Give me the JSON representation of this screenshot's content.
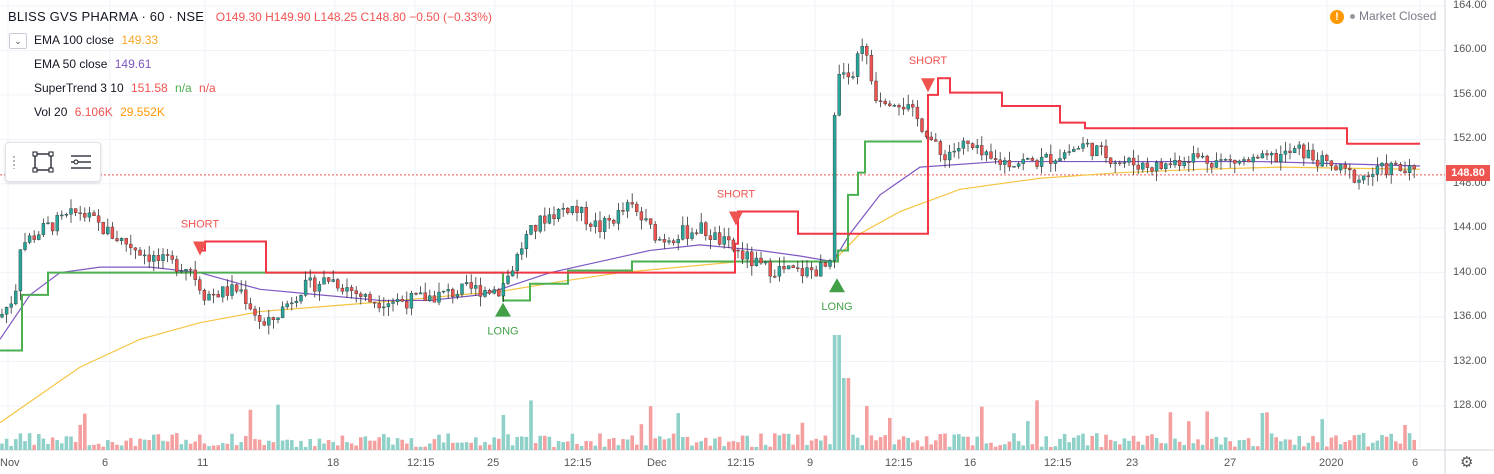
{
  "header": {
    "symbol": "BLISS GVS PHARMA · 60 · NSE",
    "ohlc": "O149.30 H149.90 L148.25 C148.80 −0.50 (−0.33%)"
  },
  "collapse_icon": "chevron-down-icon",
  "indicators": [
    {
      "name": "EMA 100 close",
      "v1": "149.33",
      "v2": "",
      "v3": "",
      "c1": "#f5a623"
    },
    {
      "name": "EMA 50 close",
      "v1": "149.61",
      "v2": "",
      "v3": "",
      "c1": "#7e57c2"
    },
    {
      "name": "SuperTrend 3 10",
      "v1": "151.58",
      "v2": "n/a",
      "v3": "n/a",
      "c1": "#ef5350",
      "c2": "#4caf50",
      "c3": "#ef5350"
    },
    {
      "name": "Vol 20",
      "v1": "6.106K",
      "v2": "29.552K",
      "v3": "",
      "c1": "#ef5350",
      "c2": "#ff9800"
    }
  ],
  "market_status": "Market Closed",
  "last_price": "148.80",
  "colors": {
    "up": "#26a69a",
    "down": "#ef5350",
    "supertrend_up": "#4caf50",
    "supertrend_down": "#f23645",
    "ema100": "#f5c542",
    "ema50": "#7e57c2",
    "vol_up": "#8fd1c8",
    "vol_down": "#f5a0a0"
  },
  "chart_data": {
    "type": "candlestick",
    "ylim": [
      125,
      164
    ],
    "y_ticks": [
      "164.00",
      "160.00",
      "156.00",
      "152.00",
      "148.00",
      "144.00",
      "140.00",
      "136.00",
      "132.00",
      "128.00"
    ],
    "x_ticks": [
      "Nov",
      "6",
      "11",
      "18",
      "12:15",
      "25",
      "12:15",
      "Dec",
      "12:15",
      "9",
      "12:15",
      "16",
      "12:15",
      "23",
      "27",
      "2020",
      "6"
    ],
    "supertrend_green": [
      [
        0,
        133
      ],
      [
        15,
        133
      ],
      [
        22,
        138
      ],
      [
        45,
        138
      ],
      [
        48,
        140
      ],
      [
        200,
        140
      ],
      [
        500,
        140
      ],
      [
        503,
        137.5
      ],
      [
        527,
        137.5
      ],
      [
        530,
        139
      ],
      [
        560,
        139
      ],
      [
        568,
        140.2
      ],
      [
        625,
        140.2
      ],
      [
        632,
        141
      ],
      [
        700,
        141
      ],
      [
        720,
        141
      ],
      [
        733,
        141
      ],
      [
        834,
        141
      ],
      [
        838,
        142
      ],
      [
        848,
        147
      ],
      [
        858,
        149
      ],
      [
        865,
        151.8
      ],
      [
        922,
        151.8
      ]
    ],
    "supertrend_red": [
      [
        200,
        142
      ],
      [
        205,
        142.8
      ],
      [
        236,
        142.8
      ],
      [
        266,
        140
      ],
      [
        500,
        140
      ],
      [
        735,
        142.6
      ],
      [
        738,
        145.5
      ],
      [
        790,
        145.5
      ],
      [
        798,
        143.5
      ],
      [
        834,
        143.5
      ],
      [
        928,
        156
      ],
      [
        938,
        157.5
      ],
      [
        950,
        156.2
      ],
      [
        995,
        156.2
      ],
      [
        1002,
        155
      ],
      [
        1050,
        155
      ],
      [
        1060,
        153.5
      ],
      [
        1080,
        153.5
      ],
      [
        1085,
        153
      ],
      [
        1170,
        153
      ],
      [
        1330,
        153
      ],
      [
        1347,
        151.6
      ],
      [
        1420,
        151.6
      ]
    ],
    "ema50": [
      [
        0,
        134
      ],
      [
        30,
        138
      ],
      [
        60,
        140
      ],
      [
        100,
        140.5
      ],
      [
        150,
        140.5
      ],
      [
        200,
        140
      ],
      [
        260,
        138.5
      ],
      [
        320,
        138
      ],
      [
        380,
        137.5
      ],
      [
        430,
        137.5
      ],
      [
        480,
        138
      ],
      [
        500,
        138.5
      ],
      [
        550,
        140
      ],
      [
        600,
        141
      ],
      [
        650,
        142
      ],
      [
        700,
        142.5
      ],
      [
        760,
        142
      ],
      [
        800,
        141.5
      ],
      [
        833,
        141
      ],
      [
        850,
        143.5
      ],
      [
        880,
        147
      ],
      [
        920,
        149.5
      ],
      [
        1000,
        150
      ],
      [
        1100,
        150
      ],
      [
        1180,
        150
      ],
      [
        1260,
        150
      ],
      [
        1340,
        149.8
      ],
      [
        1420,
        149.6
      ]
    ],
    "ema100": [
      [
        0,
        126.5
      ],
      [
        40,
        129
      ],
      [
        80,
        131.5
      ],
      [
        140,
        134
      ],
      [
        200,
        135.5
      ],
      [
        260,
        136.5
      ],
      [
        330,
        137
      ],
      [
        400,
        137.5
      ],
      [
        460,
        138
      ],
      [
        500,
        138.3
      ],
      [
        560,
        139.2
      ],
      [
        620,
        140
      ],
      [
        680,
        140.5
      ],
      [
        740,
        141
      ],
      [
        800,
        141
      ],
      [
        833,
        141
      ],
      [
        860,
        143.5
      ],
      [
        900,
        145.5
      ],
      [
        960,
        147.5
      ],
      [
        1040,
        148.5
      ],
      [
        1120,
        149
      ],
      [
        1200,
        149.3
      ],
      [
        1280,
        149.5
      ],
      [
        1420,
        149.3
      ]
    ],
    "signals": [
      {
        "label": "SHORT",
        "type": "short",
        "x": 200,
        "y": 142.8
      },
      {
        "label": "LONG",
        "type": "long",
        "x": 503,
        "y": 137.3
      },
      {
        "label": "SHORT",
        "type": "short",
        "x": 736,
        "y": 145.5
      },
      {
        "label": "LONG",
        "type": "long",
        "x": 837,
        "y": 139.5
      },
      {
        "label": "SHORT",
        "type": "short",
        "x": 928,
        "y": 157.5
      }
    ],
    "last_price": 148.8
  }
}
